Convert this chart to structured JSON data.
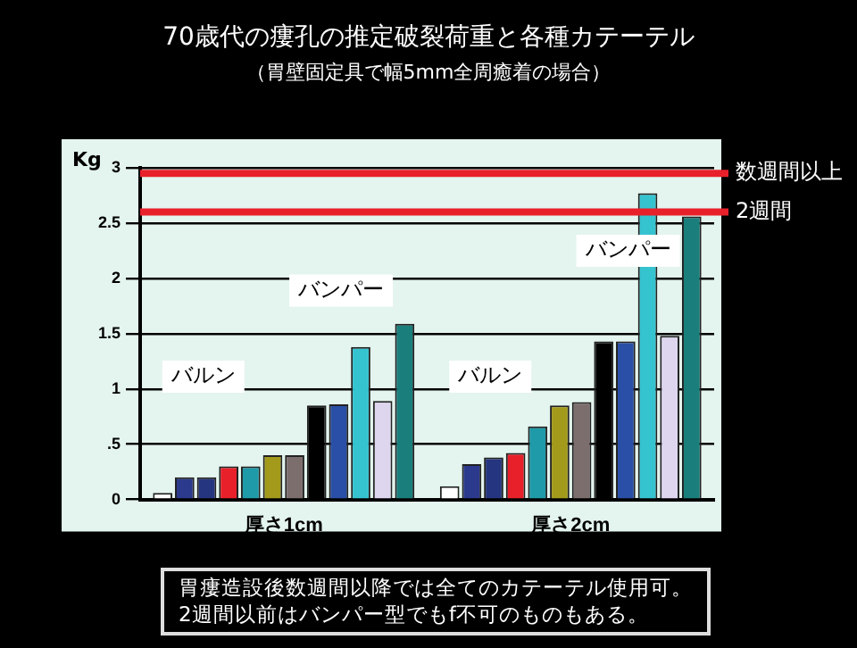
{
  "chart_data": {
    "type": "bar",
    "title": "70歳代の瘻孔の推定破裂荷重と各種カテーテル",
    "subtitle": "（胃壁固定具で幅5mm全周癒着の場合）",
    "ylabel": "Kg",
    "categories": [
      "厚さ1cm",
      "厚さ2cm"
    ],
    "series": [
      {
        "color": "#ffffff",
        "values": [
          0.06,
          0.12
        ]
      },
      {
        "color": "#2b3a8c",
        "values": [
          0.2,
          0.32
        ]
      },
      {
        "color": "#26357f",
        "values": [
          0.2,
          0.38
        ]
      },
      {
        "color": "#e8202a",
        "values": [
          0.3,
          0.42
        ]
      },
      {
        "color": "#1e9aa8",
        "values": [
          0.3,
          0.66
        ]
      },
      {
        "color": "#a39a1c",
        "values": [
          0.4,
          0.85
        ]
      },
      {
        "color": "#7d6e6e",
        "values": [
          0.4,
          0.88
        ]
      },
      {
        "color": "#000000",
        "values": [
          0.85,
          1.43
        ]
      },
      {
        "color": "#2a4fa6",
        "values": [
          0.86,
          1.43
        ]
      },
      {
        "color": "#35c3d0",
        "values": [
          1.38,
          2.77
        ]
      },
      {
        "color": "#ddd6ee",
        "values": [
          0.89,
          1.48
        ]
      },
      {
        "color": "#1a7f7c",
        "values": [
          1.59,
          2.56
        ]
      }
    ],
    "ylim": [
      0,
      3
    ],
    "yticks": [
      0,
      {
        "value": 0.5,
        "label": ".5"
      },
      1,
      1.5,
      2,
      2.5,
      3
    ],
    "grid": "y",
    "ref_lines": [
      {
        "axis": "y",
        "value": 2.95,
        "label": "数週間以上",
        "color": "#e8202a"
      },
      {
        "axis": "y",
        "value": 2.6,
        "label": "2週間",
        "color": "#e8202a"
      }
    ],
    "annotations": [
      "バルン",
      "バンパー",
      "バルン",
      "バンパー",
      "胃瘻造設後数週間以降では全てのカテーテル使用可。",
      "2週間以前はバンパー型でもf不可のものもある。"
    ]
  }
}
